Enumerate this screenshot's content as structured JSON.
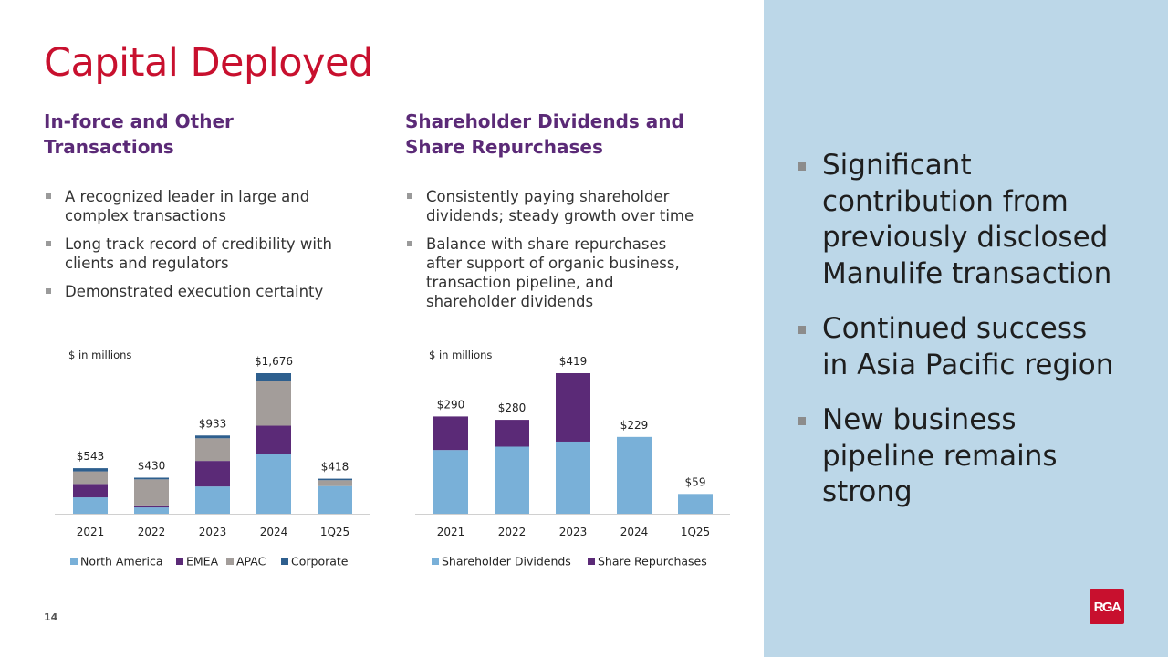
{
  "title": "Capital Deployed",
  "left": {
    "heading": [
      "In-force and Other",
      "Transactions"
    ],
    "bullets": [
      [
        "A recognized leader in large and",
        "complex transactions"
      ],
      [
        "Long track record of credibility with",
        "clients and regulators"
      ],
      [
        "Demonstrated execution certainty"
      ]
    ]
  },
  "middle": {
    "heading": [
      "Shareholder Dividends and",
      "Share Repurchases"
    ],
    "bullets": [
      [
        "Consistently paying shareholder",
        "dividends; steady growth over time"
      ],
      [
        "Balance with share repurchases",
        "after support of organic business,",
        "transaction pipeline, and",
        "shareholder dividends"
      ]
    ]
  },
  "right": {
    "bullets": [
      [
        "Significant",
        "contribution from",
        "previously disclosed",
        "Manulife transaction"
      ],
      [
        "Continued success",
        "in Asia Pacific region"
      ],
      [
        "New business",
        "pipeline remains",
        "strong"
      ]
    ]
  },
  "page_number": "14",
  "logo_text": "RGA",
  "colors": {
    "title": "#c8102e",
    "heading": "#5b2a77",
    "panel": "#bcd7e8"
  },
  "chart_data": [
    {
      "type": "bar",
      "stacked": true,
      "title": "",
      "unit_label": "$ in millions",
      "categories": [
        "2021",
        "2022",
        "2023",
        "2024",
        "1Q25"
      ],
      "series": [
        {
          "name": "North America",
          "color": "#79b0d8",
          "values": [
            195,
            75,
            325,
            715,
            330
          ]
        },
        {
          "name": "EMEA",
          "color": "#5b2a77",
          "values": [
            160,
            25,
            305,
            335,
            0
          ]
        },
        {
          "name": "APAC",
          "color": "#a39d9a",
          "values": [
            150,
            310,
            270,
            530,
            70
          ]
        },
        {
          "name": "Corporate",
          "color": "#2e5f8e",
          "values": [
            38,
            20,
            33,
            96,
            18
          ]
        }
      ],
      "totals": [
        543,
        430,
        933,
        1676,
        418
      ],
      "total_labels": [
        "$543",
        "$430",
        "$933",
        "$1,676",
        "$418"
      ],
      "ylim": [
        0,
        1676
      ],
      "legend": "bottom"
    },
    {
      "type": "bar",
      "stacked": true,
      "title": "",
      "unit_label": "$ in millions",
      "categories": [
        "2021",
        "2022",
        "2023",
        "2024",
        "1Q25"
      ],
      "series": [
        {
          "name": "Shareholder Dividends",
          "color": "#79b0d8",
          "values": [
            190,
            200,
            215,
            229,
            59
          ]
        },
        {
          "name": "Share Repurchases",
          "color": "#5b2a77",
          "values": [
            100,
            80,
            204,
            0,
            0
          ]
        }
      ],
      "totals": [
        290,
        280,
        419,
        229,
        59
      ],
      "total_labels": [
        "$290",
        "$280",
        "$419",
        "$229",
        "$59"
      ],
      "ylim": [
        0,
        419
      ],
      "legend": "bottom"
    }
  ]
}
